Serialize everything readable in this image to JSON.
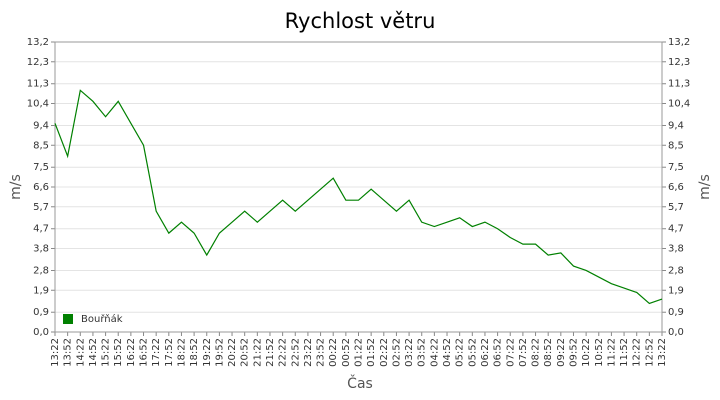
{
  "chart_data": {
    "type": "line",
    "title": "Rychlost větru",
    "x_label": "Čas",
    "y_label": "m/s",
    "y2_label": "m/s",
    "categories": [
      "13:22",
      "13:52",
      "14:22",
      "14:52",
      "15:22",
      "15:52",
      "16:22",
      "16:52",
      "17:22",
      "17:52",
      "18:22",
      "18:52",
      "19:22",
      "19:52",
      "20:22",
      "20:52",
      "21:22",
      "21:52",
      "22:22",
      "22:52",
      "23:22",
      "23:52",
      "00:22",
      "00:52",
      "01:22",
      "01:52",
      "02:22",
      "02:52",
      "03:22",
      "03:52",
      "04:22",
      "04:52",
      "05:22",
      "05:52",
      "06:22",
      "06:52",
      "07:22",
      "07:52",
      "08:22",
      "08:52",
      "09:22",
      "09:52",
      "10:22",
      "10:52",
      "11:22",
      "11:52",
      "12:22",
      "12:52",
      "13:22"
    ],
    "series": [
      {
        "name": "Bouřňák",
        "color": "#008000",
        "values": [
          9.5,
          8,
          11,
          10.5,
          9.8,
          10.5,
          9.5,
          8.5,
          5.5,
          4.5,
          5,
          4.5,
          3.5,
          4.5,
          5,
          5.5,
          5,
          5.5,
          6,
          5.5,
          6,
          6.5,
          7,
          6,
          6,
          6.5,
          6,
          5.5,
          6,
          5,
          4.8,
          5,
          5.2,
          4.8,
          5,
          4.7,
          4.3,
          4,
          4,
          3.5,
          3.6,
          3,
          2.8,
          2.5,
          2.2,
          2,
          1.8,
          1.3,
          1.5
        ]
      }
    ],
    "ylim": [
      0,
      13.2
    ],
    "yticks": [
      {
        "value": 0,
        "label": "0,0"
      },
      {
        "value": 0.9,
        "label": "0,9"
      },
      {
        "value": 1.9,
        "label": "1,9"
      },
      {
        "value": 2.8,
        "label": "2,8"
      },
      {
        "value": 3.8,
        "label": "3,8"
      },
      {
        "value": 4.7,
        "label": "4,7"
      },
      {
        "value": 5.7,
        "label": "5,7"
      },
      {
        "value": 6.6,
        "label": "6,6"
      },
      {
        "value": 7.5,
        "label": "7,5"
      },
      {
        "value": 8.5,
        "label": "8,5"
      },
      {
        "value": 9.4,
        "label": "9,4"
      },
      {
        "value": 10.4,
        "label": "10,4"
      },
      {
        "value": 11.3,
        "label": "11,3"
      },
      {
        "value": 12.3,
        "label": "12,3"
      },
      {
        "value": 13.2,
        "label": "13,2"
      }
    ],
    "y2lim": [
      0,
      13.2
    ],
    "y2ticks": [
      {
        "value": 0,
        "label": "0,0"
      },
      {
        "value": 0.9,
        "label": "0,9"
      },
      {
        "value": 1.9,
        "label": "1,9"
      },
      {
        "value": 2.8,
        "label": "2,8"
      },
      {
        "value": 3.8,
        "label": "3,8"
      },
      {
        "value": 4.7,
        "label": "4,7"
      },
      {
        "value": 5.7,
        "label": "5,7"
      },
      {
        "value": 6.6,
        "label": "6,6"
      },
      {
        "value": 7.5,
        "label": "7,5"
      },
      {
        "value": 8.5,
        "label": "8,5"
      },
      {
        "value": 9.4,
        "label": "9,4"
      },
      {
        "value": 10.4,
        "label": "10,4"
      },
      {
        "value": 11.3,
        "label": "11,3"
      },
      {
        "value": 12.3,
        "label": "12,3"
      },
      {
        "value": 13.2,
        "label": "13,2"
      }
    ],
    "grid": true,
    "legend": "bottom-left"
  }
}
